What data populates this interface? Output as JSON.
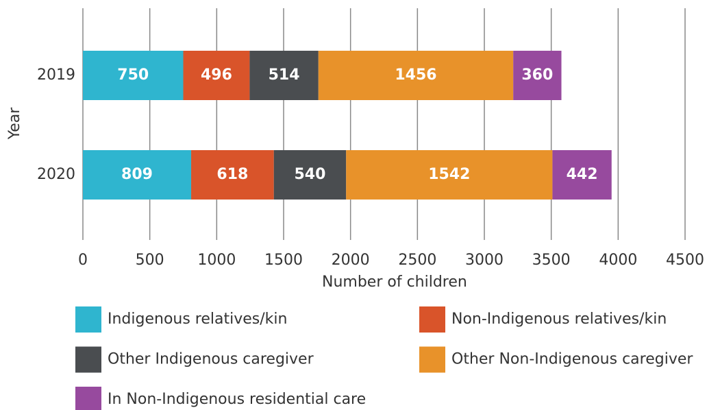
{
  "chart_data": {
    "type": "stacked-horizontal-bar",
    "x_label": "Number of children",
    "y_label": "Year",
    "categories": [
      "2019",
      "2020"
    ],
    "series": [
      {
        "name": "Indigenous relatives/kin",
        "color": "#2fb5cf",
        "values": [
          750,
          809
        ]
      },
      {
        "name": "Non-Indigenous relatives/kin",
        "color": "#d9542a",
        "values": [
          496,
          618
        ]
      },
      {
        "name": "Other Indigenous caregiver",
        "color": "#4a4d50",
        "values": [
          514,
          540
        ]
      },
      {
        "name": "Other Non-Indigenous caregiver",
        "color": "#e8922a",
        "values": [
          1456,
          1542
        ]
      },
      {
        "name": "In Non-Indigenous residential care",
        "color": "#974a9e",
        "values": [
          360,
          442
        ]
      }
    ],
    "xlim": [
      0,
      4500
    ],
    "xticks": [
      0,
      500,
      1000,
      1500,
      2000,
      2500,
      3000,
      3500,
      4000,
      4500
    ],
    "grid": true,
    "legend": "bottom"
  }
}
